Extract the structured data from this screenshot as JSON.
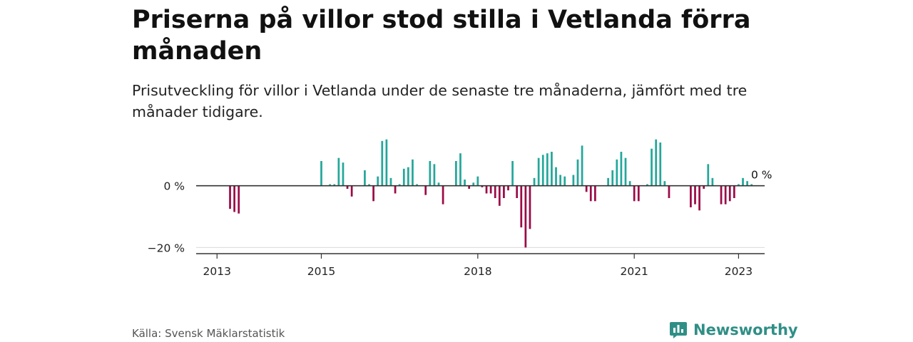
{
  "header": {
    "title": "Priserna på villor stod stilla i Vetlanda förra månaden",
    "subtitle": "Prisutveckling för villor i Vetlanda under de senaste tre månaderna, jämfört med tre månader tidigare."
  },
  "footer": {
    "source": "Källa: Svensk Mäklarstatistik",
    "brand": "Newsworthy"
  },
  "colors": {
    "positive": "#24a79b",
    "negative": "#9b0b47",
    "axis": "#333333",
    "grid": "#d9d9d9",
    "brand": "#2f8f86"
  },
  "chart_data": {
    "type": "bar",
    "ylim": [
      -22,
      14
    ],
    "yticks": [
      {
        "value": 0,
        "label": "0 %"
      },
      {
        "value": -20,
        "label": "−20 %"
      }
    ],
    "xticks": [
      {
        "value": 2013,
        "label": "2013"
      },
      {
        "value": 2015,
        "label": "2015"
      },
      {
        "value": 2018,
        "label": "2018"
      },
      {
        "value": 2021,
        "label": "2021"
      },
      {
        "value": 2023,
        "label": "2023"
      }
    ],
    "xlim": [
      2012.6,
      2023.5
    ],
    "grid": true,
    "end_label": "0 %",
    "start": "2013-01",
    "values": [
      0,
      0,
      0,
      -7.5,
      -8.5,
      -9,
      0,
      0,
      0,
      0,
      0,
      0,
      0,
      0,
      0,
      0,
      0,
      0,
      0,
      0,
      0,
      0,
      0,
      0,
      8,
      0,
      0.5,
      0.5,
      9,
      7.5,
      -1,
      -3.5,
      0,
      0,
      5,
      0.5,
      -5,
      3,
      14.5,
      15,
      2.5,
      -2.5,
      0.5,
      5.5,
      6,
      8.5,
      0.5,
      0,
      -3,
      8,
      7,
      1,
      -6,
      0,
      0,
      8,
      10.5,
      2,
      -1,
      1,
      3,
      -0.5,
      -2.5,
      -2.5,
      -4,
      -6.5,
      -4,
      -1.5,
      8,
      -4,
      -13.5,
      -20,
      -14,
      2.5,
      9,
      10,
      10.5,
      11,
      6,
      3.5,
      3,
      0,
      3.5,
      8.5,
      13,
      -2,
      -5,
      -5,
      0,
      0,
      2.5,
      5,
      8.5,
      11,
      9,
      1.5,
      -5,
      -5,
      0,
      0.5,
      12,
      15,
      14,
      1.5,
      -4,
      0,
      0,
      0,
      0,
      -7,
      -6,
      -8,
      -1,
      7,
      2.5,
      0,
      -6,
      -6,
      -5,
      -4,
      0.5,
      2.5,
      1.5,
      0.5
    ]
  }
}
